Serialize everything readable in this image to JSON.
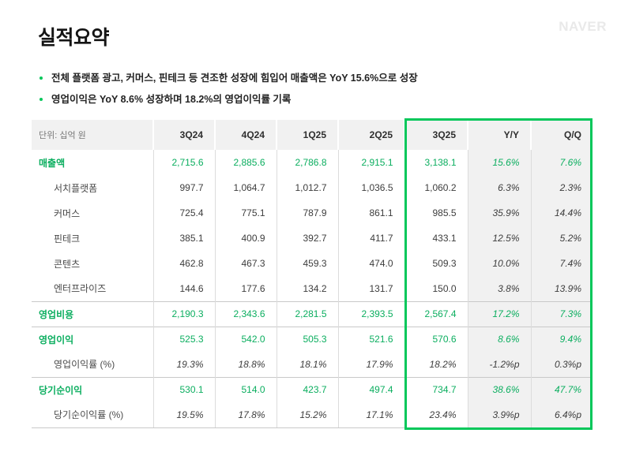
{
  "brand": {
    "logo_text": "NAVER"
  },
  "page": {
    "title": "실적요약"
  },
  "bullets": [
    "전체 플랫폼 광고, 커머스, 핀테크 등 견조한 성장에 힘입어 매출액은 YoY 15.6%으로 성장",
    "영업이익은 YoY 8.6% 성장하며 18.2%의 영업이익률 기록"
  ],
  "colors": {
    "brand_green": "#03c75a",
    "green_text": "#0bae5f",
    "header_bg": "#f1f1f1",
    "shaded_column_bg": "#f1f1f1",
    "grid_line": "#dcdcdc",
    "section_line": "#c9c9c9",
    "logo_gray": "#e9e9e9"
  },
  "table": {
    "unit_label": "단위: 십억 원",
    "columns": [
      "3Q24",
      "4Q24",
      "1Q25",
      "2Q25",
      "3Q25",
      "Y/Y",
      "Q/Q"
    ],
    "highlighted_columns": [
      "3Q25",
      "Y/Y",
      "Q/Q"
    ],
    "rows": [
      {
        "name": "revenue",
        "label": "매출액",
        "style": "primary",
        "divider_above": false,
        "values": [
          "2,715.6",
          "2,885.6",
          "2,786.8",
          "2,915.1",
          "3,138.1",
          "15.6%",
          "7.6%"
        ]
      },
      {
        "name": "search-platform",
        "label": "서치플랫폼",
        "style": "sub",
        "divider_above": false,
        "values": [
          "997.7",
          "1,064.7",
          "1,012.7",
          "1,036.5",
          "1,060.2",
          "6.3%",
          "2.3%"
        ]
      },
      {
        "name": "commerce",
        "label": "커머스",
        "style": "sub",
        "divider_above": false,
        "values": [
          "725.4",
          "775.1",
          "787.9",
          "861.1",
          "985.5",
          "35.9%",
          "14.4%"
        ]
      },
      {
        "name": "fintech",
        "label": "핀테크",
        "style": "sub",
        "divider_above": false,
        "values": [
          "385.1",
          "400.9",
          "392.7",
          "411.7",
          "433.1",
          "12.5%",
          "5.2%"
        ]
      },
      {
        "name": "contents",
        "label": "콘텐츠",
        "style": "sub",
        "divider_above": false,
        "values": [
          "462.8",
          "467.3",
          "459.3",
          "474.0",
          "509.3",
          "10.0%",
          "7.4%"
        ]
      },
      {
        "name": "enterprise",
        "label": "엔터프라이즈",
        "style": "sub",
        "divider_above": false,
        "values": [
          "144.6",
          "177.6",
          "134.2",
          "131.7",
          "150.0",
          "3.8%",
          "13.9%"
        ]
      },
      {
        "name": "operating-expenses",
        "label": "영업비용",
        "style": "primary",
        "divider_above": true,
        "values": [
          "2,190.3",
          "2,343.6",
          "2,281.5",
          "2,393.5",
          "2,567.4",
          "17.2%",
          "7.3%"
        ]
      },
      {
        "name": "operating-profit",
        "label": "영업이익",
        "style": "primary",
        "divider_above": true,
        "values": [
          "525.3",
          "542.0",
          "505.3",
          "521.6",
          "570.6",
          "8.6%",
          "9.4%"
        ]
      },
      {
        "name": "operating-margin",
        "label": "영업이익률 (%)",
        "style": "ratio",
        "divider_above": false,
        "values": [
          "19.3%",
          "18.8%",
          "18.1%",
          "17.9%",
          "18.2%",
          "-1.2%p",
          "0.3%p"
        ]
      },
      {
        "name": "net-profit",
        "label": "당기순이익",
        "style": "primary",
        "divider_above": true,
        "values": [
          "530.1",
          "514.0",
          "423.7",
          "497.4",
          "734.7",
          "38.6%",
          "47.7%"
        ]
      },
      {
        "name": "net-margin",
        "label": "당기순이익률 (%)",
        "style": "ratio",
        "divider_above": false,
        "values": [
          "19.5%",
          "17.8%",
          "15.2%",
          "17.1%",
          "23.4%",
          "3.9%p",
          "6.4%p"
        ]
      }
    ]
  }
}
